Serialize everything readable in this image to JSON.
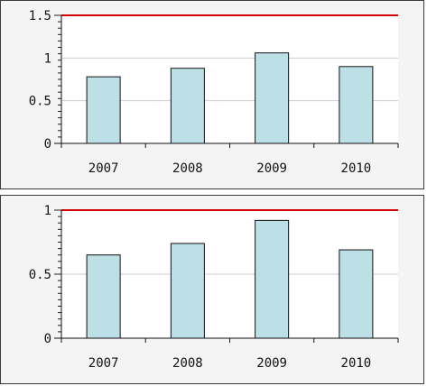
{
  "chart_data": [
    {
      "type": "bar",
      "categories": [
        "2007",
        "2008",
        "2009",
        "2010"
      ],
      "values": [
        0.78,
        0.88,
        1.06,
        0.9
      ],
      "ylim": [
        0,
        1.5
      ],
      "yticks": [
        "0",
        "0.5",
        "1",
        "1.5"
      ],
      "reference_line": {
        "value": 1.5,
        "color": "#d40000"
      },
      "grid": true,
      "bar_color": "#bde0e6",
      "grid_color": "#cccccc"
    },
    {
      "type": "bar",
      "categories": [
        "2007",
        "2008",
        "2009",
        "2010"
      ],
      "values": [
        0.65,
        0.74,
        0.92,
        0.69
      ],
      "ylim": [
        0,
        1
      ],
      "yticks": [
        "0",
        "0.5",
        "1"
      ],
      "reference_line": {
        "value": 1,
        "color": "#d40000"
      },
      "grid": true,
      "bar_color": "#bde0e6",
      "grid_color": "#cccccc"
    }
  ]
}
